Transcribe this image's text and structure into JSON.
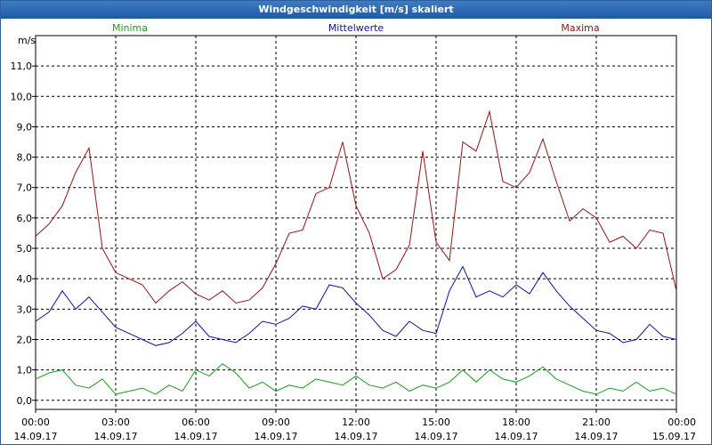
{
  "window": {
    "title": "Windgeschwindigkeit [m/s] skaliert"
  },
  "colors": {
    "min": "#1aa01a",
    "mean": "#1010b0",
    "max": "#a01010",
    "grid": "#000000"
  },
  "chart_data": {
    "type": "line",
    "title": "Windgeschwindigkeit [m/s] skaliert",
    "ylabel": "m/s",
    "ylim": [
      -0.3,
      12.0
    ],
    "xlim": [
      0,
      24
    ],
    "y_ticks": [
      "0,0",
      "1,0",
      "2,0",
      "3,0",
      "4,0",
      "5,0",
      "6,0",
      "7,0",
      "8,0",
      "9,0",
      "10,0",
      "11,0"
    ],
    "y_tick_values": [
      0,
      1,
      2,
      3,
      4,
      5,
      6,
      7,
      8,
      9,
      10,
      11
    ],
    "x_tick_values": [
      0,
      3,
      6,
      9,
      12,
      15,
      18,
      21,
      24
    ],
    "x_ticks": [
      {
        "time": "00:00",
        "date": "14.09.17"
      },
      {
        "time": "03:00",
        "date": "14.09.17"
      },
      {
        "time": "06:00",
        "date": "14.09.17"
      },
      {
        "time": "09:00",
        "date": "14.09.17"
      },
      {
        "time": "12:00",
        "date": "14.09.17"
      },
      {
        "time": "15:00",
        "date": "14.09.17"
      },
      {
        "time": "18:00",
        "date": "14.09.17"
      },
      {
        "time": "21:00",
        "date": "14.09.17"
      },
      {
        "time": "00:00",
        "date": "15.09.17"
      }
    ],
    "series": [
      {
        "name": "Minima",
        "key": "min",
        "x": [
          0,
          0.5,
          1,
          1.5,
          2,
          2.5,
          3,
          3.5,
          4,
          4.5,
          5,
          5.5,
          6,
          6.5,
          7,
          7.5,
          8,
          8.5,
          9,
          9.5,
          10,
          10.5,
          11,
          11.5,
          12,
          12.5,
          13,
          13.5,
          14,
          14.5,
          15,
          15.5,
          16,
          16.5,
          17,
          17.5,
          18,
          18.5,
          19,
          19.5,
          20,
          20.5,
          21,
          21.5,
          22,
          22.5,
          23,
          23.5,
          24
        ],
        "values": [
          0.7,
          0.9,
          1.0,
          0.5,
          0.4,
          0.7,
          0.2,
          0.3,
          0.4,
          0.2,
          0.5,
          0.3,
          1.0,
          0.8,
          1.2,
          0.9,
          0.4,
          0.6,
          0.3,
          0.5,
          0.4,
          0.7,
          0.6,
          0.5,
          0.8,
          0.5,
          0.4,
          0.6,
          0.3,
          0.5,
          0.4,
          0.6,
          1.0,
          0.6,
          1.0,
          0.7,
          0.6,
          0.8,
          1.1,
          0.7,
          0.5,
          0.3,
          0.2,
          0.4,
          0.3,
          0.6,
          0.3,
          0.4,
          0.2
        ]
      },
      {
        "name": "Mittelwerte",
        "key": "mean",
        "x": [
          0,
          0.5,
          1,
          1.5,
          2,
          2.5,
          3,
          3.5,
          4,
          4.5,
          5,
          5.5,
          6,
          6.5,
          7,
          7.5,
          8,
          8.5,
          9,
          9.5,
          10,
          10.5,
          11,
          11.5,
          12,
          12.5,
          13,
          13.5,
          14,
          14.5,
          15,
          15.5,
          16,
          16.5,
          17,
          17.5,
          18,
          18.5,
          19,
          19.5,
          20,
          20.5,
          21,
          21.5,
          22,
          22.5,
          23,
          23.5,
          24
        ],
        "values": [
          2.6,
          2.9,
          3.6,
          3.0,
          3.4,
          2.9,
          2.4,
          2.2,
          2.0,
          1.8,
          1.9,
          2.2,
          2.6,
          2.1,
          2.0,
          1.9,
          2.2,
          2.6,
          2.5,
          2.7,
          3.1,
          3.0,
          3.8,
          3.7,
          3.2,
          2.8,
          2.3,
          2.1,
          2.6,
          2.3,
          2.2,
          3.6,
          4.4,
          3.4,
          3.6,
          3.4,
          3.8,
          3.5,
          4.2,
          3.6,
          3.1,
          2.7,
          2.3,
          2.2,
          1.9,
          2.0,
          2.5,
          2.1,
          2.0
        ]
      },
      {
        "name": "Maxima",
        "key": "max",
        "x": [
          0,
          0.5,
          1,
          1.5,
          2,
          2.5,
          3,
          3.5,
          4,
          4.5,
          5,
          5.5,
          6,
          6.5,
          7,
          7.5,
          8,
          8.5,
          9,
          9.5,
          10,
          10.5,
          11,
          11.5,
          12,
          12.5,
          13,
          13.5,
          14,
          14.5,
          15,
          15.5,
          16,
          16.5,
          17,
          17.5,
          18,
          18.5,
          19,
          19.5,
          20,
          20.5,
          21,
          21.5,
          22,
          22.5,
          23,
          23.5,
          24
        ],
        "values": [
          5.4,
          5.8,
          6.4,
          7.5,
          8.3,
          5.0,
          4.2,
          4.0,
          3.8,
          3.2,
          3.6,
          3.9,
          3.5,
          3.3,
          3.6,
          3.2,
          3.3,
          3.7,
          4.5,
          5.5,
          5.6,
          6.8,
          7.0,
          8.5,
          6.4,
          5.5,
          4.0,
          4.3,
          5.1,
          8.2,
          5.2,
          4.6,
          8.5,
          8.2,
          9.5,
          7.2,
          7.0,
          7.5,
          8.6,
          7.2,
          5.9,
          6.3,
          6.0,
          5.2,
          5.4,
          5.0,
          5.6,
          5.5,
          3.6
        ]
      }
    ]
  }
}
